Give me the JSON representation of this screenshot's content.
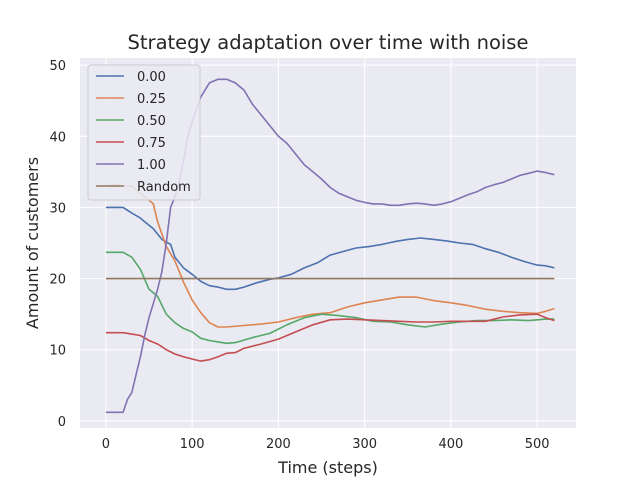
{
  "chart_data": {
    "type": "line",
    "title": "Strategy adaptation over time with noise",
    "xlabel": "Time (steps)",
    "ylabel": "Amount of customers",
    "xlim": [
      -30,
      545
    ],
    "ylim": [
      -1,
      51
    ],
    "xticks": [
      0,
      100,
      200,
      300,
      400,
      500
    ],
    "yticks": [
      0,
      10,
      20,
      30,
      40,
      50
    ],
    "grid": true,
    "legend_position": "upper left",
    "series": [
      {
        "name": "0.00",
        "color": "#4c72b0",
        "x": [
          0,
          20,
          30,
          40,
          45,
          55,
          65,
          75,
          80,
          90,
          100,
          110,
          120,
          130,
          140,
          150,
          160,
          175,
          190,
          200,
          215,
          230,
          245,
          260,
          275,
          290,
          305,
          320,
          335,
          350,
          365,
          380,
          395,
          410,
          425,
          440,
          455,
          470,
          485,
          500,
          510,
          520
        ],
        "y": [
          30,
          30,
          29.2,
          28.5,
          28,
          27,
          25.5,
          24.8,
          23,
          21.5,
          20.6,
          19.6,
          19,
          18.8,
          18.5,
          18.5,
          18.8,
          19.4,
          19.9,
          20.1,
          20.6,
          21.5,
          22.2,
          23.3,
          23.8,
          24.3,
          24.5,
          24.8,
          25.2,
          25.5,
          25.7,
          25.5,
          25.3,
          25,
          24.8,
          24.2,
          23.7,
          23,
          22.4,
          21.9,
          21.8,
          21.5
        ]
      },
      {
        "name": "0.25",
        "color": "#dd8452",
        "x": [
          0,
          10,
          20,
          30,
          40,
          50,
          55,
          60,
          70,
          80,
          90,
          100,
          110,
          120,
          130,
          140,
          160,
          180,
          200,
          220,
          240,
          260,
          280,
          300,
          320,
          340,
          360,
          380,
          400,
          420,
          440,
          460,
          480,
          500,
          510,
          520
        ],
        "y": [
          33,
          33.2,
          33,
          33,
          32,
          31,
          30.5,
          28,
          24.5,
          22.5,
          19.5,
          17,
          15.2,
          13.8,
          13.2,
          13.2,
          13.4,
          13.6,
          13.9,
          14.5,
          15,
          15.2,
          16,
          16.6,
          17,
          17.4,
          17.4,
          16.9,
          16.6,
          16.2,
          15.7,
          15.4,
          15.2,
          15.1,
          15.4,
          15.8
        ]
      },
      {
        "name": "0.50",
        "color": "#55a868",
        "x": [
          0,
          20,
          30,
          40,
          50,
          60,
          70,
          80,
          90,
          100,
          110,
          120,
          130,
          140,
          150,
          170,
          190,
          210,
          230,
          250,
          270,
          290,
          310,
          330,
          350,
          370,
          390,
          410,
          430,
          450,
          470,
          490,
          510,
          520
        ],
        "y": [
          23.7,
          23.7,
          23,
          21.3,
          18.5,
          17.5,
          15,
          13.8,
          13,
          12.5,
          11.6,
          11.3,
          11.1,
          10.9,
          11,
          11.7,
          12.3,
          13.5,
          14.5,
          15,
          14.8,
          14.5,
          14,
          13.9,
          13.5,
          13.2,
          13.6,
          13.9,
          14.1,
          14.1,
          14.2,
          14.1,
          14.3,
          14.3
        ]
      },
      {
        "name": "0.75",
        "color": "#c44e52",
        "x": [
          0,
          20,
          30,
          40,
          50,
          60,
          70,
          80,
          90,
          100,
          110,
          120,
          130,
          140,
          150,
          160,
          180,
          200,
          220,
          240,
          260,
          280,
          300,
          320,
          340,
          360,
          380,
          400,
          420,
          440,
          460,
          480,
          500,
          510,
          520
        ],
        "y": [
          12.4,
          12.4,
          12.2,
          12,
          11.3,
          10.8,
          10,
          9.4,
          9,
          8.7,
          8.4,
          8.6,
          9,
          9.5,
          9.6,
          10.2,
          10.8,
          11.5,
          12.5,
          13.5,
          14.2,
          14.3,
          14.2,
          14.1,
          14,
          13.9,
          13.9,
          14,
          14,
          14,
          14.6,
          14.9,
          15,
          14.5,
          14.1
        ]
      },
      {
        "name": "1.00",
        "color": "#8172b3",
        "x": [
          0,
          20,
          25,
          30,
          35,
          40,
          45,
          50,
          55,
          60,
          65,
          70,
          75,
          80,
          85,
          90,
          95,
          100,
          110,
          120,
          130,
          140,
          150,
          160,
          170,
          180,
          190,
          200,
          210,
          220,
          230,
          240,
          250,
          260,
          270,
          280,
          290,
          300,
          310,
          320,
          330,
          340,
          350,
          360,
          370,
          380,
          390,
          400,
          410,
          420,
          430,
          440,
          450,
          460,
          470,
          480,
          490,
          500,
          510,
          520
        ],
        "y": [
          1.2,
          1.2,
          3,
          4,
          6.5,
          9,
          12,
          14.5,
          16.5,
          18.5,
          21,
          25,
          30,
          31.5,
          33.5,
          36.5,
          40,
          42,
          45.5,
          47.5,
          48,
          48,
          47.5,
          46.5,
          44.5,
          43,
          41.5,
          40,
          39,
          37.5,
          36,
          35,
          34,
          32.8,
          32,
          31.5,
          31,
          30.7,
          30.5,
          30.5,
          30.3,
          30.3,
          30.5,
          30.6,
          30.5,
          30.3,
          30.5,
          30.8,
          31.3,
          31.8,
          32.2,
          32.8,
          33.2,
          33.5,
          34,
          34.5,
          34.8,
          35.1,
          34.9,
          34.6
        ]
      },
      {
        "name": "Random",
        "color": "#937860",
        "x": [
          0,
          520
        ],
        "y": [
          20,
          20
        ]
      }
    ]
  }
}
